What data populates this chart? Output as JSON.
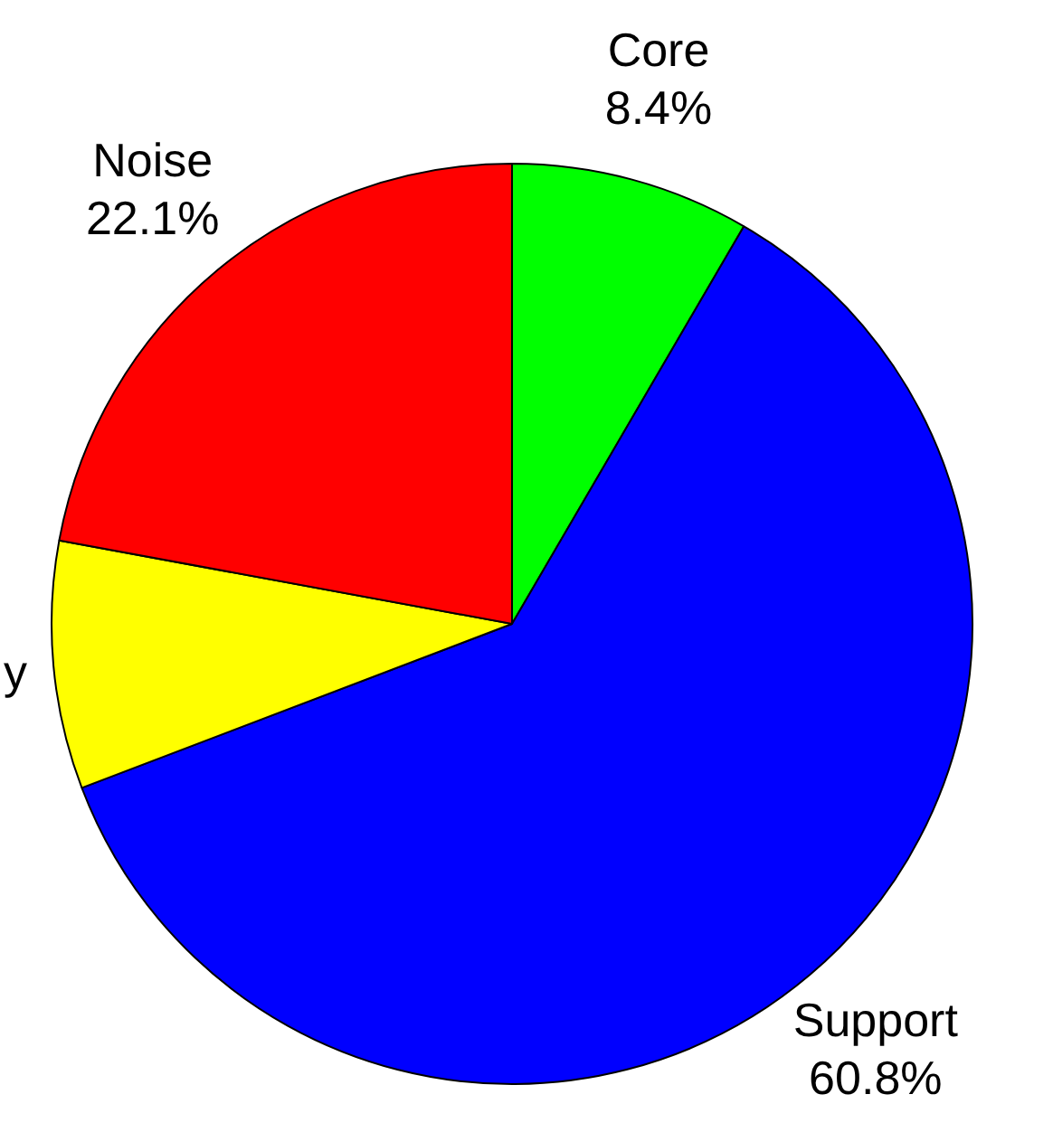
{
  "chart_data": {
    "type": "pie",
    "categories": [
      "Core",
      "Support",
      "y",
      "Noise"
    ],
    "values": [
      8.4,
      60.8,
      8.7,
      22.1
    ],
    "colors": [
      "#00ff00",
      "#0000ff",
      "#ffff00",
      "#ff0000"
    ],
    "value_labels": [
      "8.4%",
      "60.8%",
      null,
      "22.1%"
    ]
  }
}
